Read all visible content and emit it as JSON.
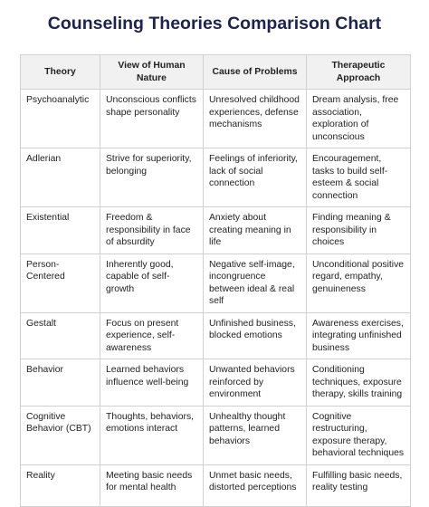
{
  "title": "Counseling Theories Comparison Chart",
  "table": {
    "header": [
      "Theory",
      "View of Human Nature",
      "Cause of Problems",
      "Therapeutic Approach"
    ],
    "rows": [
      [
        "Psychoanalytic",
        "Unconscious conflicts shape personality",
        "Unresolved childhood experiences, defense mechanisms",
        "Dream analysis, free association, exploration of unconscious"
      ],
      [
        "Adlerian",
        "Strive for superiority, belonging",
        "Feelings of inferiority, lack of social connection",
        "Encouragement, tasks to build self-esteem & social connection"
      ],
      [
        "Existential",
        "Freedom & responsibility in face of absurdity",
        "Anxiety about creating meaning in life",
        "Finding meaning & responsibility in choices"
      ],
      [
        "Person-Centered",
        "Inherently good, capable of self-growth",
        "Negative self-image, incongruence between ideal & real self",
        "Unconditional positive regard, empathy, genuineness"
      ],
      [
        "Gestalt",
        "Focus on present experience, self-awareness",
        "Unfinished business, blocked emotions",
        "Awareness exercises, integrating unfinished business"
      ],
      [
        "Behavior",
        "Learned behaviors influence well-being",
        "Unwanted behaviors reinforced by environment",
        "Conditioning techniques, exposure therapy, skills training"
      ],
      [
        "Cognitive Behavior (CBT)",
        "Thoughts, behaviors, emotions interact",
        "Unhealthy thought patterns, learned behaviors",
        "Cognitive restructuring, exposure therapy, behavioral techniques"
      ],
      [
        "Reality",
        "Meeting basic needs for mental health",
        "Unmet basic needs, distorted perceptions",
        "Fulfilling basic needs, reality testing"
      ]
    ]
  }
}
